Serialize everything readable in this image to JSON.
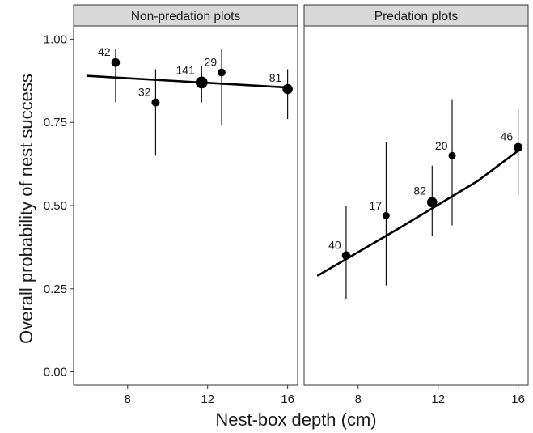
{
  "chart_data": {
    "type": "scatter",
    "ylabel": "Overall probability of nest success",
    "xlabel": "Nest-box depth (cm)",
    "xlim": [
      5.3,
      16.5
    ],
    "ylim": [
      -0.04,
      1.04
    ],
    "x_ticks": [
      8,
      12,
      16
    ],
    "x_tick_labels": [
      "8",
      "12",
      "16"
    ],
    "y_ticks": [
      0.0,
      0.25,
      0.5,
      0.75,
      1.0
    ],
    "y_tick_labels": [
      "0.00",
      "0.25",
      "0.50",
      "0.75",
      "1.00"
    ],
    "grid": false,
    "legend": "none",
    "colors": {
      "strip_fill": "#d9d9d9",
      "mark": "#000000",
      "panel_border": "#333333"
    },
    "panels": [
      {
        "strip_label": "Non-predation plots",
        "points": [
          {
            "x": 7.4,
            "y": 0.93,
            "lower": 0.81,
            "upper": 0.97,
            "n": "42"
          },
          {
            "x": 9.4,
            "y": 0.81,
            "lower": 0.65,
            "upper": 0.91,
            "n": "32"
          },
          {
            "x": 11.7,
            "y": 0.87,
            "lower": 0.81,
            "upper": 0.92,
            "n": "141"
          },
          {
            "x": 12.7,
            "y": 0.9,
            "lower": 0.74,
            "upper": 0.97,
            "n": "29"
          },
          {
            "x": 16.0,
            "y": 0.85,
            "lower": 0.76,
            "upper": 0.91,
            "n": "81"
          }
        ],
        "fit_line": [
          {
            "x": 6.0,
            "y": 0.89
          },
          {
            "x": 16.0,
            "y": 0.855
          }
        ]
      },
      {
        "strip_label": "Predation plots",
        "points": [
          {
            "x": 7.4,
            "y": 0.35,
            "lower": 0.22,
            "upper": 0.5,
            "n": "40"
          },
          {
            "x": 9.4,
            "y": 0.47,
            "lower": 0.26,
            "upper": 0.69,
            "n": "17"
          },
          {
            "x": 11.7,
            "y": 0.51,
            "lower": 0.41,
            "upper": 0.62,
            "n": "82"
          },
          {
            "x": 12.7,
            "y": 0.65,
            "lower": 0.44,
            "upper": 0.82,
            "n": "20"
          },
          {
            "x": 16.0,
            "y": 0.675,
            "lower": 0.53,
            "upper": 0.79,
            "n": "46"
          }
        ],
        "fit_line": [
          {
            "x": 6.0,
            "y": 0.29
          },
          {
            "x": 10.0,
            "y": 0.43
          },
          {
            "x": 14.0,
            "y": 0.575
          },
          {
            "x": 16.0,
            "y": 0.665
          }
        ]
      }
    ]
  }
}
